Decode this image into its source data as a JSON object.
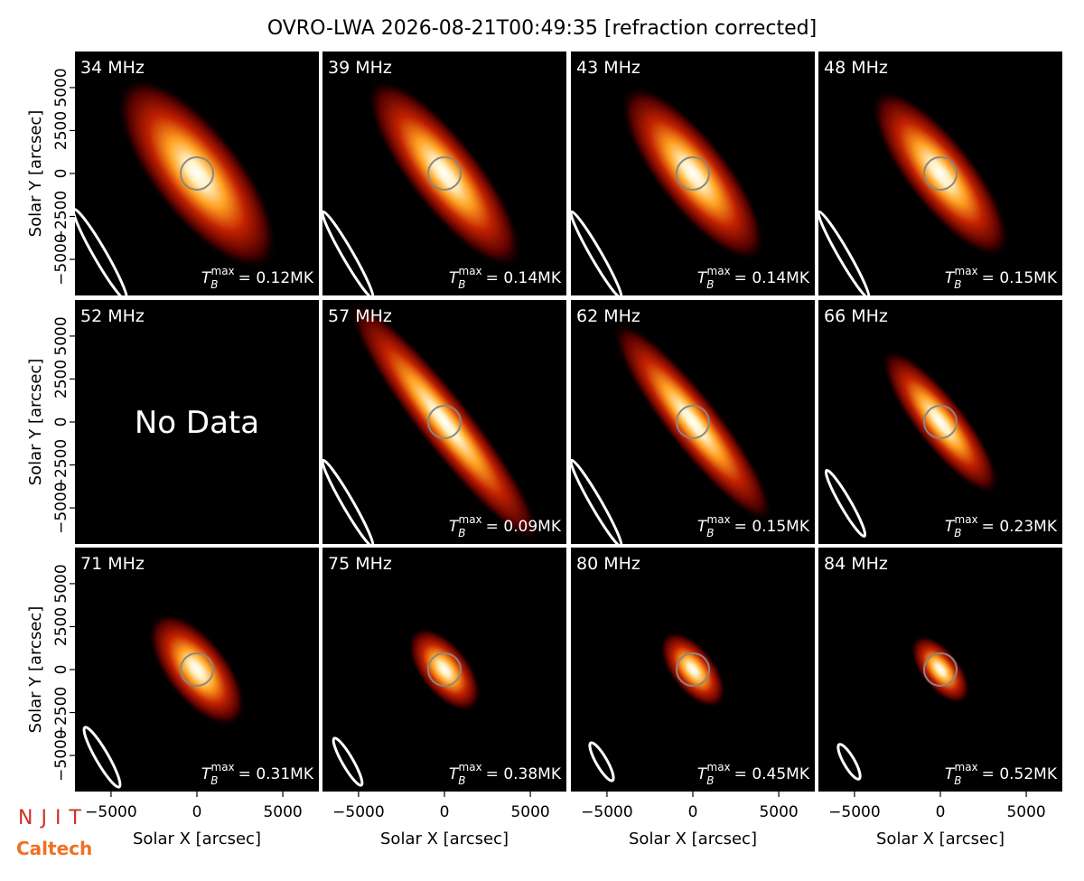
{
  "chart_data": {
    "type": "image-grid",
    "title": "OVRO-LWA 2026-08-21T00:49:35 [refraction corrected]",
    "xlabel": "Solar X [arcsec]",
    "ylabel": "Solar Y [arcsec]",
    "xlim": [
      -7100,
      7100
    ],
    "ylim": [
      -7100,
      7100
    ],
    "xticks": [
      {
        "value": -5000,
        "label": "−5000"
      },
      0,
      5000
    ],
    "yticks": [
      {
        "value": -5000,
        "label": "−5000"
      },
      {
        "value": -2500,
        "label": "−2500"
      },
      0,
      2500,
      5000
    ],
    "panels": [
      {
        "title": "34 MHz",
        "annotation": {
          "symbol": "T",
          "subscript": "B",
          "superscript": "max",
          "text": "= 0.12MK"
        }
      },
      {
        "title": "39 MHz",
        "annotation": {
          "symbol": "T",
          "subscript": "B",
          "superscript": "max",
          "text": "= 0.14MK"
        }
      },
      {
        "title": "43 MHz",
        "annotation": {
          "symbol": "T",
          "subscript": "B",
          "superscript": "max",
          "text": "= 0.14MK"
        }
      },
      {
        "title": "48 MHz",
        "annotation": {
          "symbol": "T",
          "subscript": "B",
          "superscript": "max",
          "text": "= 0.15MK"
        }
      },
      {
        "title": "52 MHz",
        "note": "No Data"
      },
      {
        "title": "57 MHz",
        "annotation": {
          "symbol": "T",
          "subscript": "B",
          "superscript": "max",
          "text": "= 0.09MK"
        }
      },
      {
        "title": "62 MHz",
        "annotation": {
          "symbol": "T",
          "subscript": "B",
          "superscript": "max",
          "text": "= 0.15MK"
        }
      },
      {
        "title": "66 MHz",
        "annotation": {
          "symbol": "T",
          "subscript": "B",
          "superscript": "max",
          "text": "= 0.23MK"
        }
      },
      {
        "title": "71 MHz",
        "annotation": {
          "symbol": "T",
          "subscript": "B",
          "superscript": "max",
          "text": "= 0.31MK"
        }
      },
      {
        "title": "75 MHz",
        "annotation": {
          "symbol": "T",
          "subscript": "B",
          "superscript": "max",
          "text": "= 0.38MK"
        }
      },
      {
        "title": "80 MHz",
        "annotation": {
          "symbol": "T",
          "subscript": "B",
          "superscript": "max",
          "text": "= 0.45MK"
        }
      },
      {
        "title": "84 MHz",
        "annotation": {
          "symbol": "T",
          "subscript": "B",
          "superscript": "max",
          "text": "= 0.52MK"
        }
      }
    ]
  },
  "logos": {
    "njit": "NJIT",
    "caltech": "Caltech"
  }
}
